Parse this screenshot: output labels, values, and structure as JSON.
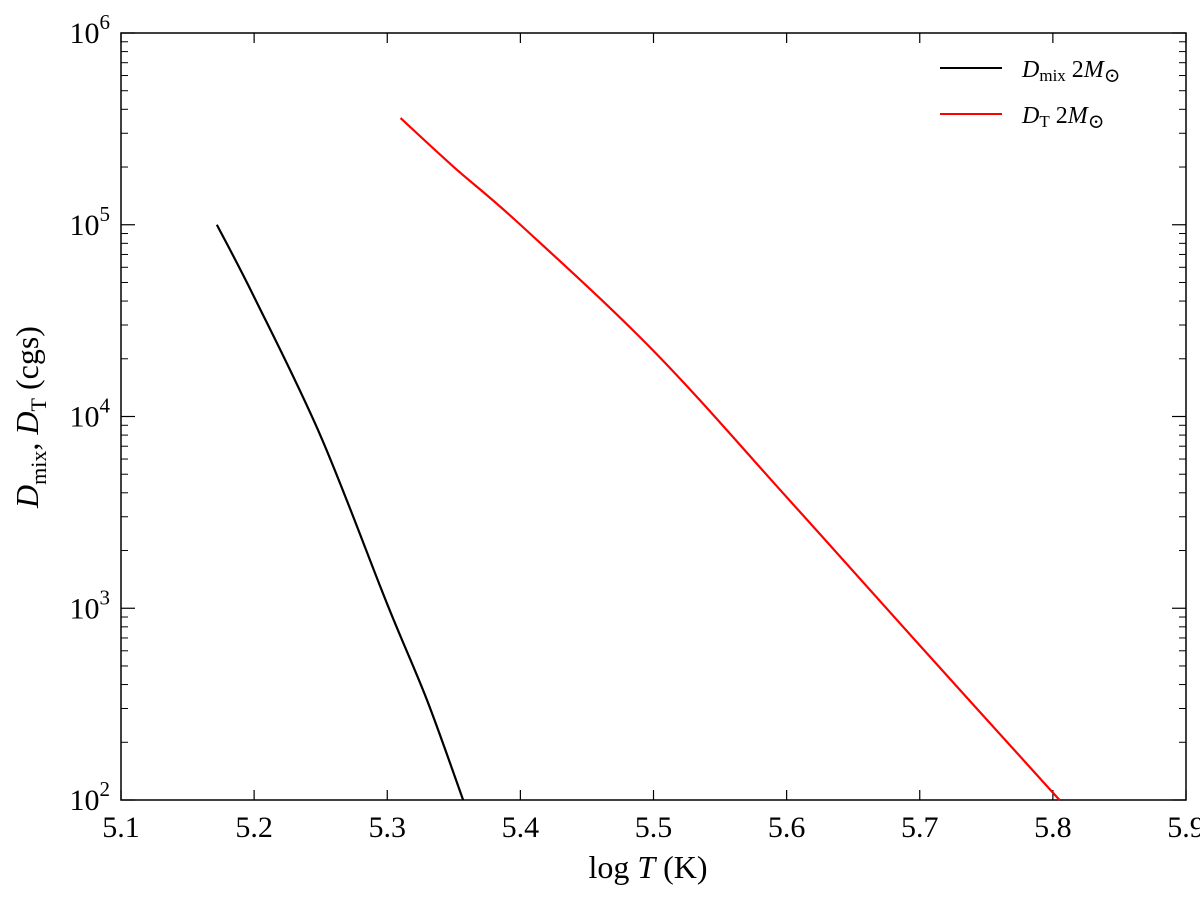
{
  "chart_data": {
    "type": "line",
    "xlabel": "log T (K)",
    "ylabel": "D_mix, D_T (cgs)",
    "xlim": [
      5.1,
      5.9
    ],
    "ylim": [
      100,
      1000000
    ],
    "yscale": "log",
    "grid": false,
    "legend_position": "top-right",
    "x_ticks": [
      "5.1",
      "5.2",
      "5.3",
      "5.4",
      "5.5",
      "5.6",
      "5.7",
      "5.8",
      "5.9"
    ],
    "y_ticks": [
      {
        "base": "10",
        "exp": "2"
      },
      {
        "base": "10",
        "exp": "3"
      },
      {
        "base": "10",
        "exp": "4"
      },
      {
        "base": "10",
        "exp": "5"
      },
      {
        "base": "10",
        "exp": "6"
      }
    ],
    "series": [
      {
        "name": "D_mix 2M_sun",
        "color": "#000000",
        "x": [
          5.172,
          5.2,
          5.25,
          5.3,
          5.33,
          5.357
        ],
        "y": [
          100000,
          42000,
          7900,
          1050,
          330,
          100
        ]
      },
      {
        "name": "D_T 2M_sun",
        "color": "#ff0000",
        "x": [
          5.31,
          5.35,
          5.4,
          5.5,
          5.6,
          5.7,
          5.805
        ],
        "y": [
          360000,
          200000,
          100000,
          22000,
          3800,
          640,
          100
        ]
      }
    ]
  }
}
